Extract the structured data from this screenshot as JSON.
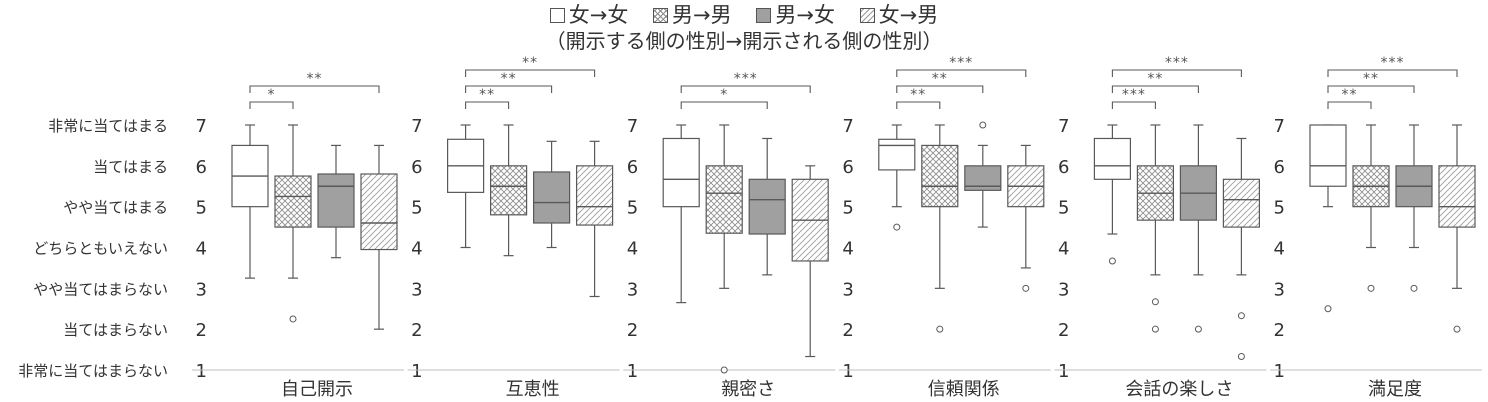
{
  "legend": {
    "items": [
      {
        "label": "女→女",
        "fill": "plain"
      },
      {
        "label": "男→男",
        "fill": "crosshatch"
      },
      {
        "label": "男→女",
        "fill": "gray"
      },
      {
        "label": "女→男",
        "fill": "diagonal"
      }
    ],
    "subtitle": "（開示する側の性別→開示される側の性別）"
  },
  "colors": {
    "gray_fill": "#a0a0a0",
    "line": "#595959",
    "axis": "#bfbfbf"
  },
  "chart_data": {
    "type": "boxplot",
    "ylim": [
      1,
      7
    ],
    "y_ticks": [
      1,
      2,
      3,
      4,
      5,
      6,
      7
    ],
    "y_category_labels": [
      "非常に当てはまらない",
      "当てはまらない",
      "やや当てはまらない",
      "どちらともいえない",
      "やや当てはまる",
      "当てはまる",
      "非常に当てはまる"
    ],
    "groups": [
      "女→女",
      "男→男",
      "男→女",
      "女→男"
    ],
    "panels": [
      {
        "title": "自己開示",
        "boxes": [
          {
            "whisker_low": 3.25,
            "q1": 5.0,
            "median": 5.75,
            "q3": 6.5,
            "whisker_high": 7.0,
            "outliers": []
          },
          {
            "whisker_low": 3.25,
            "q1": 4.5,
            "median": 5.25,
            "q3": 5.75,
            "whisker_high": 7.0,
            "outliers": [
              2.25
            ]
          },
          {
            "whisker_low": 3.75,
            "q1": 4.5,
            "median": 5.5,
            "q3": 5.8,
            "whisker_high": 6.5,
            "outliers": []
          },
          {
            "whisker_low": 2.0,
            "q1": 3.95,
            "median": 4.6,
            "q3": 5.8,
            "whisker_high": 6.5,
            "outliers": []
          }
        ],
        "significance": [
          {
            "from": 0,
            "to": 1,
            "stars": "*"
          },
          {
            "from": 0,
            "to": 3,
            "stars": "**"
          }
        ]
      },
      {
        "title": "互恵性",
        "boxes": [
          {
            "whisker_low": 4.0,
            "q1": 5.35,
            "median": 6.0,
            "q3": 6.65,
            "whisker_high": 7.0,
            "outliers": []
          },
          {
            "whisker_low": 3.8,
            "q1": 4.8,
            "median": 5.5,
            "q3": 6.0,
            "whisker_high": 7.0,
            "outliers": []
          },
          {
            "whisker_low": 4.0,
            "q1": 4.6,
            "median": 5.1,
            "q3": 5.85,
            "whisker_high": 6.6,
            "outliers": []
          },
          {
            "whisker_low": 2.8,
            "q1": 4.55,
            "median": 5.0,
            "q3": 6.0,
            "whisker_high": 6.6,
            "outliers": []
          }
        ],
        "significance": [
          {
            "from": 0,
            "to": 1,
            "stars": "**"
          },
          {
            "from": 0,
            "to": 2,
            "stars": "**"
          },
          {
            "from": 0,
            "to": 3,
            "stars": "**"
          }
        ]
      },
      {
        "title": "親密さ",
        "boxes": [
          {
            "whisker_low": 2.65,
            "q1": 5.0,
            "median": 5.67,
            "q3": 6.67,
            "whisker_high": 7.0,
            "outliers": []
          },
          {
            "whisker_low": 3.0,
            "q1": 4.35,
            "median": 5.33,
            "q3": 6.0,
            "whisker_high": 7.0,
            "outliers": [
              1.0
            ]
          },
          {
            "whisker_low": 3.33,
            "q1": 4.33,
            "median": 5.17,
            "q3": 5.67,
            "whisker_high": 6.67,
            "outliers": []
          },
          {
            "whisker_low": 1.33,
            "q1": 3.67,
            "median": 4.67,
            "q3": 5.67,
            "whisker_high": 6.0,
            "outliers": []
          }
        ],
        "significance": [
          {
            "from": 0,
            "to": 2,
            "stars": "*"
          },
          {
            "from": 0,
            "to": 3,
            "stars": "***"
          }
        ]
      },
      {
        "title": "信頼関係",
        "boxes": [
          {
            "whisker_low": 5.0,
            "q1": 5.9,
            "median": 6.5,
            "q3": 6.65,
            "whisker_high": 7.0,
            "outliers": [
              4.5
            ]
          },
          {
            "whisker_low": 3.0,
            "q1": 5.0,
            "median": 5.5,
            "q3": 6.5,
            "whisker_high": 7.0,
            "outliers": [
              2.0
            ]
          },
          {
            "whisker_low": 4.5,
            "q1": 5.4,
            "median": 5.5,
            "q3": 6.0,
            "whisker_high": 6.5,
            "outliers": [
              7.0
            ]
          },
          {
            "whisker_low": 3.5,
            "q1": 5.0,
            "median": 5.5,
            "q3": 6.0,
            "whisker_high": 6.5,
            "outliers": [
              3.0
            ]
          }
        ],
        "significance": [
          {
            "from": 0,
            "to": 1,
            "stars": "**"
          },
          {
            "from": 0,
            "to": 2,
            "stars": "**"
          },
          {
            "from": 0,
            "to": 3,
            "stars": "***"
          }
        ]
      },
      {
        "title": "会話の楽しさ",
        "boxes": [
          {
            "whisker_low": 4.33,
            "q1": 5.67,
            "median": 6.0,
            "q3": 6.67,
            "whisker_high": 7.0,
            "outliers": [
              3.67
            ]
          },
          {
            "whisker_low": 3.33,
            "q1": 4.67,
            "median": 5.33,
            "q3": 6.0,
            "whisker_high": 7.0,
            "outliers": [
              2.67,
              2.0
            ]
          },
          {
            "whisker_low": 3.33,
            "q1": 4.67,
            "median": 5.33,
            "q3": 6.0,
            "whisker_high": 7.0,
            "outliers": [
              2.0
            ]
          },
          {
            "whisker_low": 3.33,
            "q1": 4.5,
            "median": 5.17,
            "q3": 5.67,
            "whisker_high": 6.67,
            "outliers": [
              2.33,
              1.33
            ]
          }
        ],
        "significance": [
          {
            "from": 0,
            "to": 1,
            "stars": "***"
          },
          {
            "from": 0,
            "to": 2,
            "stars": "**"
          },
          {
            "from": 0,
            "to": 3,
            "stars": "***"
          }
        ]
      },
      {
        "title": "満足度",
        "boxes": [
          {
            "whisker_low": 5.0,
            "q1": 5.5,
            "median": 6.0,
            "q3": 7.0,
            "whisker_high": 7.0,
            "outliers": [
              2.5
            ]
          },
          {
            "whisker_low": 4.0,
            "q1": 5.0,
            "median": 5.5,
            "q3": 6.0,
            "whisker_high": 7.0,
            "outliers": [
              3.0
            ]
          },
          {
            "whisker_low": 4.0,
            "q1": 5.0,
            "median": 5.5,
            "q3": 6.0,
            "whisker_high": 7.0,
            "outliers": [
              3.0
            ]
          },
          {
            "whisker_low": 3.0,
            "q1": 4.5,
            "median": 5.0,
            "q3": 6.0,
            "whisker_high": 7.0,
            "outliers": [
              2.0
            ]
          }
        ],
        "significance": [
          {
            "from": 0,
            "to": 1,
            "stars": "**"
          },
          {
            "from": 0,
            "to": 2,
            "stars": "**"
          },
          {
            "from": 0,
            "to": 3,
            "stars": "***"
          }
        ]
      }
    ]
  }
}
